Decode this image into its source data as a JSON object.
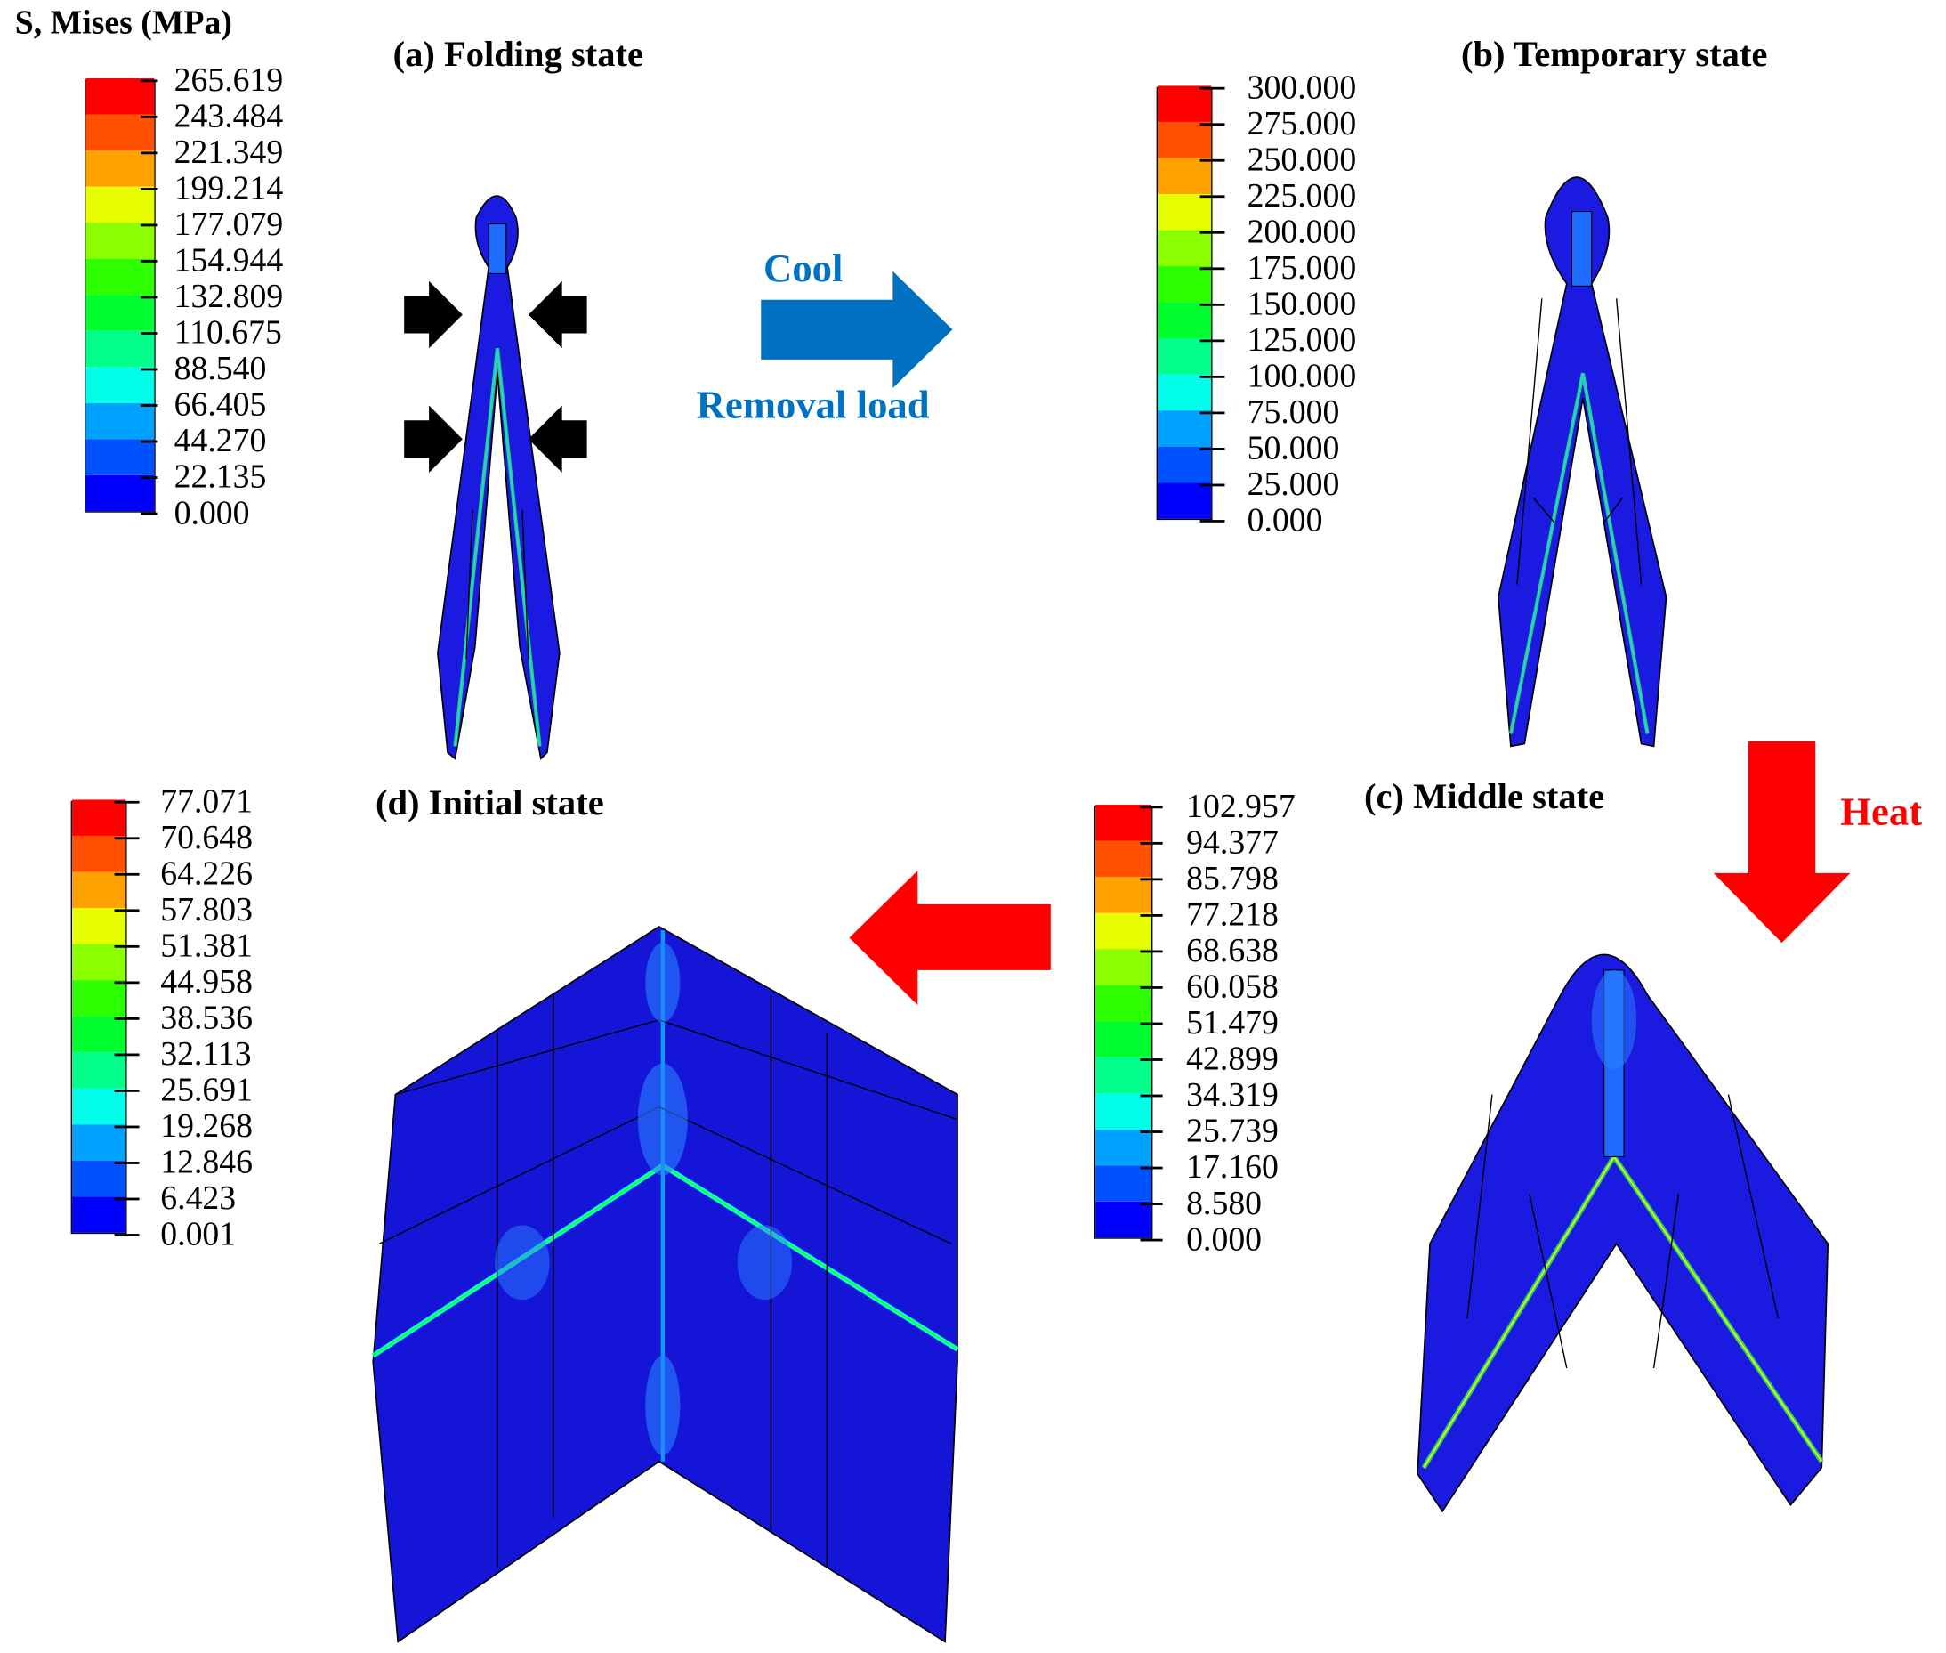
{
  "legend_title": "S, Mises (MPa)",
  "colormap": [
    "#0000ff",
    "#0051ff",
    "#00a2ff",
    "#00ffe8",
    "#00ff8b",
    "#00ff2e",
    "#2eff00",
    "#8bff00",
    "#e8ff00",
    "#ffa200",
    "#ff5100",
    "#ff0000"
  ],
  "panels": {
    "a": {
      "title": "(a) Folding state",
      "scale": [
        "265.619",
        "243.484",
        "221.349",
        "199.214",
        "177.079",
        "154.944",
        "132.809",
        "110.675",
        "88.540",
        "66.405",
        "44.270",
        "22.135",
        "0.000"
      ]
    },
    "b": {
      "title": "(b) Temporary state",
      "scale": [
        "300.000",
        "275.000",
        "250.000",
        "225.000",
        "200.000",
        "175.000",
        "150.000",
        "125.000",
        "100.000",
        "75.000",
        "50.000",
        "25.000",
        "0.000"
      ]
    },
    "c": {
      "title": "(c) Middle state",
      "scale": [
        "102.957",
        "94.377",
        "85.798",
        "77.218",
        "68.638",
        "60.058",
        "51.479",
        "42.899",
        "34.319",
        "25.739",
        "17.160",
        "8.580",
        "0.000"
      ]
    },
    "d": {
      "title": "(d) Initial state",
      "scale": [
        "77.071",
        "70.648",
        "64.226",
        "57.803",
        "51.381",
        "44.958",
        "38.536",
        "32.113",
        "25.691",
        "19.268",
        "12.846",
        "6.423",
        "0.001"
      ]
    }
  },
  "transitions": {
    "a_to_b": {
      "top_label": "Cool",
      "bottom_label": "Removal load",
      "color": "#0070c0"
    },
    "b_to_c": {
      "label": "Heat",
      "color": "#ff0000"
    },
    "c_to_d": {
      "color": "#ff0000"
    }
  }
}
